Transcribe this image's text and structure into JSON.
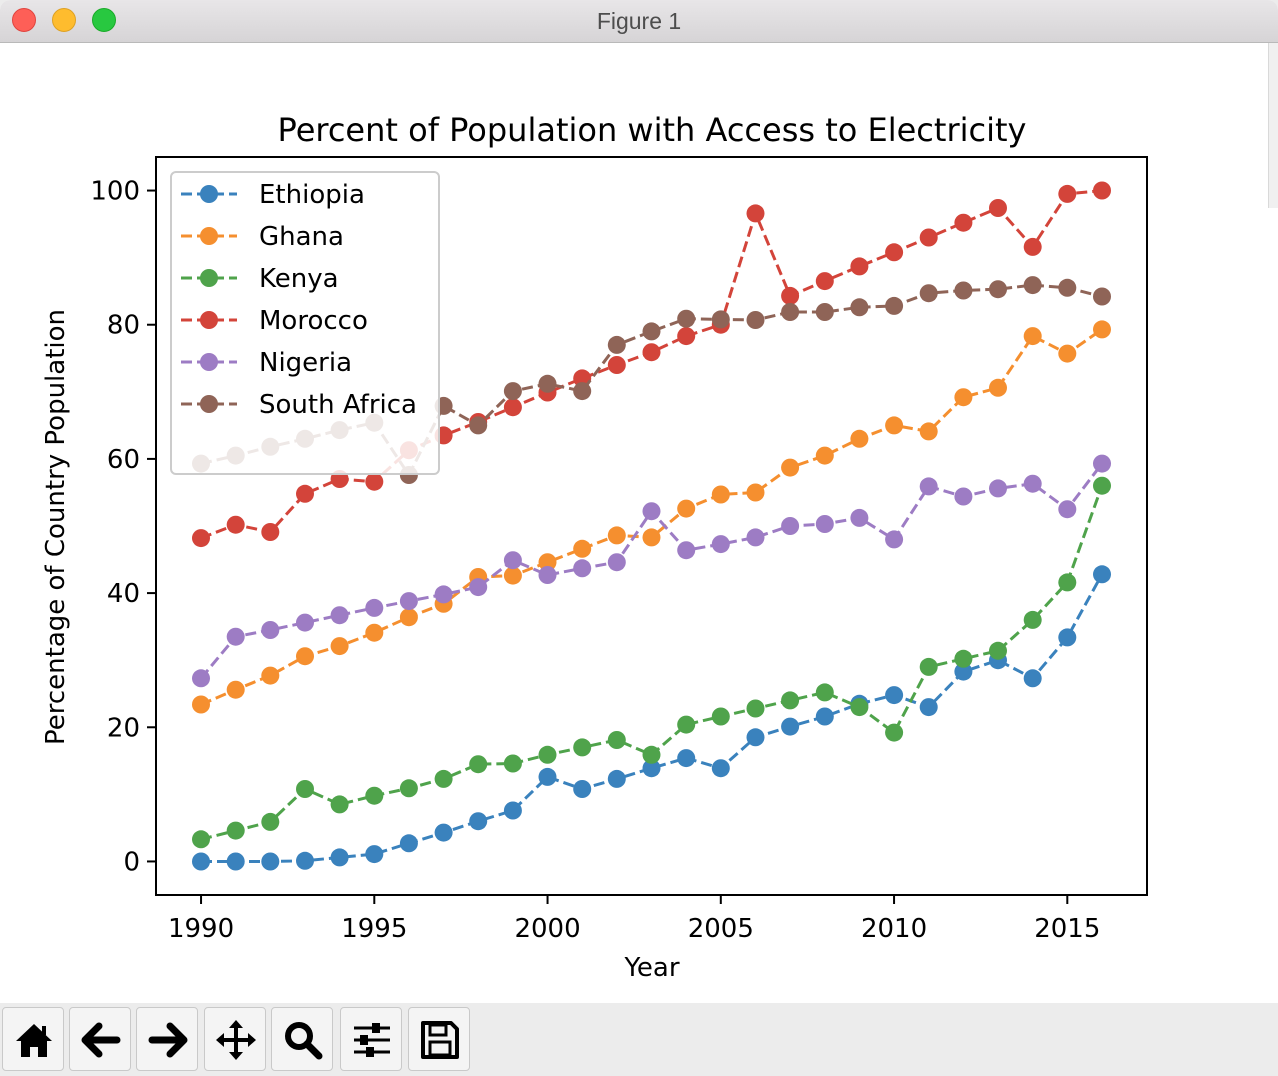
{
  "window": {
    "title": "Figure 1"
  },
  "toolbar": {
    "buttons": [
      {
        "name": "home",
        "icon": "home-icon"
      },
      {
        "name": "back",
        "icon": "arrow-left-icon"
      },
      {
        "name": "forward",
        "icon": "arrow-right-icon"
      },
      {
        "name": "pan",
        "icon": "move-icon"
      },
      {
        "name": "zoom",
        "icon": "magnifier-icon"
      },
      {
        "name": "configure-subplots",
        "icon": "sliders-icon"
      },
      {
        "name": "save",
        "icon": "floppy-icon"
      }
    ]
  },
  "chart_data": {
    "type": "line",
    "title": "Percent of Population with Access to Electricity",
    "xlabel": "Year",
    "ylabel": "Percentage of Country Population",
    "xlim": [
      1988.7,
      2017.3
    ],
    "ylim": [
      -5,
      105
    ],
    "xticks": [
      1990,
      1995,
      2000,
      2005,
      2010,
      2015
    ],
    "yticks": [
      0,
      20,
      40,
      60,
      80,
      100
    ],
    "grid": false,
    "legend_position": "upper-left",
    "line_style": "dashed",
    "marker": "circle",
    "x": [
      1990,
      1991,
      1992,
      1993,
      1994,
      1995,
      1996,
      1997,
      1998,
      1999,
      2000,
      2001,
      2002,
      2003,
      2004,
      2005,
      2006,
      2007,
      2008,
      2009,
      2010,
      2011,
      2012,
      2013,
      2014,
      2015,
      2016
    ],
    "series": [
      {
        "name": "Ethiopia",
        "color": "#3a82bd",
        "values": [
          0.0,
          0.0,
          0.0,
          0.1,
          0.6,
          1.1,
          2.7,
          4.3,
          6.0,
          7.6,
          12.6,
          10.8,
          12.3,
          13.9,
          15.4,
          13.9,
          18.5,
          20.1,
          21.6,
          23.5,
          24.8,
          23.0,
          28.3,
          30.0,
          27.3,
          33.4,
          42.8
        ]
      },
      {
        "name": "Ghana",
        "color": "#f58f2f",
        "values": [
          23.4,
          25.6,
          27.7,
          30.6,
          32.1,
          34.1,
          36.4,
          38.4,
          42.4,
          42.6,
          44.6,
          46.6,
          48.6,
          48.3,
          52.6,
          54.7,
          55.0,
          58.7,
          60.5,
          63.0,
          65.0,
          64.1,
          69.2,
          70.6,
          78.3,
          75.7,
          79.3
        ]
      },
      {
        "name": "Kenya",
        "color": "#4fa34b",
        "values": [
          3.3,
          4.6,
          5.9,
          10.8,
          8.5,
          9.8,
          10.9,
          12.3,
          14.5,
          14.6,
          15.9,
          17.0,
          18.1,
          15.9,
          20.4,
          21.6,
          22.8,
          24.0,
          25.2,
          23.0,
          19.2,
          29.0,
          30.2,
          31.4,
          36.0,
          41.6,
          56.0
        ]
      },
      {
        "name": "Morocco",
        "color": "#d3443a",
        "values": [
          48.2,
          50.2,
          49.1,
          54.8,
          57.0,
          56.6,
          61.3,
          63.5,
          65.5,
          67.7,
          69.9,
          72.0,
          74.0,
          75.9,
          78.3,
          80.0,
          96.6,
          84.3,
          86.5,
          88.7,
          90.8,
          93.0,
          95.2,
          97.4,
          91.6,
          99.5,
          100.0
        ]
      },
      {
        "name": "Nigeria",
        "color": "#9d7cc4",
        "values": [
          27.3,
          33.5,
          34.5,
          35.6,
          36.7,
          37.8,
          38.8,
          39.8,
          40.9,
          44.9,
          42.7,
          43.7,
          44.6,
          52.2,
          46.4,
          47.3,
          48.3,
          50.0,
          50.3,
          51.2,
          48.0,
          55.9,
          54.4,
          55.6,
          56.3,
          52.5,
          59.3
        ]
      },
      {
        "name": "South Africa",
        "color": "#8f6457",
        "values": [
          59.3,
          60.5,
          61.8,
          63.0,
          64.3,
          65.4,
          57.6,
          67.9,
          65.0,
          70.1,
          71.2,
          70.1,
          77.0,
          79.0,
          80.9,
          80.8,
          80.7,
          81.9,
          81.9,
          82.6,
          82.8,
          84.7,
          85.1,
          85.3,
          85.9,
          85.5,
          84.2
        ]
      }
    ]
  }
}
